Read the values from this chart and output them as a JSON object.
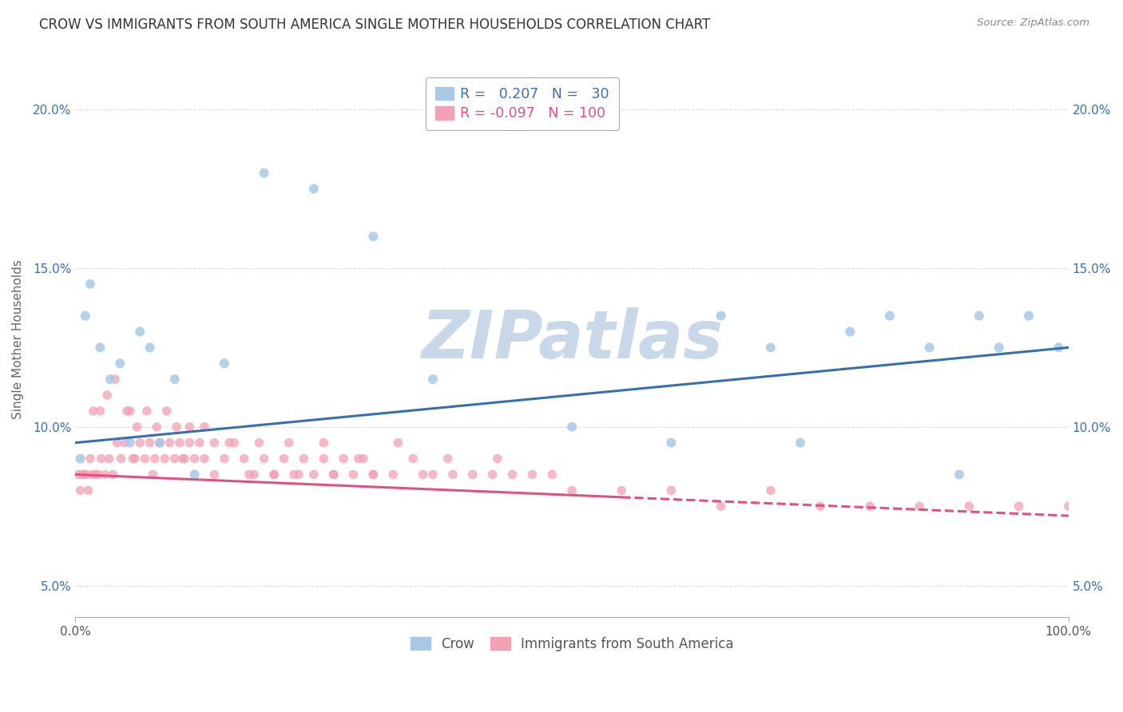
{
  "title": "CROW VS IMMIGRANTS FROM SOUTH AMERICA SINGLE MOTHER HOUSEHOLDS CORRELATION CHART",
  "source": "Source: ZipAtlas.com",
  "ylabel": "Single Mother Households",
  "blue_R": 0.207,
  "blue_N": 30,
  "pink_R": -0.097,
  "pink_N": 100,
  "blue_color": "#a8c8e8",
  "pink_color": "#f4a0b5",
  "blue_line_color": "#3a6faf",
  "pink_line_color": "#e05080",
  "xlim": [
    0,
    100
  ],
  "ylim": [
    4.0,
    21.5
  ],
  "yticks": [
    5,
    10,
    15,
    20
  ],
  "ytick_labels": [
    "5.0%",
    "10.0%",
    "15.0%",
    "20.0%"
  ],
  "watermark": "ZIPatlas",
  "watermark_color": "#c8d8e8",
  "legend_label_blue": "Crow",
  "legend_label_pink": "Immigrants from South America",
  "background_color": "#ffffff",
  "grid_color": "#dddddd",
  "blue_scatter_x": [
    0.5,
    1.0,
    1.5,
    2.5,
    3.5,
    4.5,
    5.5,
    6.5,
    7.5,
    8.5,
    10.0,
    12.0,
    15.0,
    19.0,
    24.0,
    30.0,
    36.0,
    50.0,
    60.0,
    65.0,
    70.0,
    73.0,
    78.0,
    82.0,
    86.0,
    89.0,
    91.0,
    93.0,
    96.0,
    99.0
  ],
  "blue_scatter_y": [
    9.0,
    13.5,
    14.5,
    12.5,
    11.5,
    12.0,
    9.5,
    13.0,
    12.5,
    9.5,
    11.5,
    8.5,
    12.0,
    18.0,
    17.5,
    16.0,
    11.5,
    10.0,
    9.5,
    13.5,
    12.5,
    9.5,
    13.0,
    13.5,
    12.5,
    8.5,
    13.5,
    12.5,
    13.5,
    12.5
  ],
  "pink_solid_end": 55,
  "pink_scatter_x": [
    0.3,
    0.5,
    0.7,
    0.9,
    1.1,
    1.3,
    1.5,
    1.7,
    2.0,
    2.3,
    2.6,
    3.0,
    3.4,
    3.8,
    4.2,
    4.6,
    5.0,
    5.5,
    6.0,
    6.5,
    7.0,
    7.5,
    8.0,
    8.5,
    9.0,
    9.5,
    10.0,
    10.5,
    11.0,
    11.5,
    12.0,
    12.5,
    13.0,
    14.0,
    15.0,
    16.0,
    17.0,
    18.0,
    19.0,
    20.0,
    21.0,
    22.0,
    23.0,
    24.0,
    25.0,
    26.0,
    27.0,
    28.0,
    29.0,
    30.0,
    32.0,
    34.0,
    36.0,
    38.0,
    40.0,
    42.0,
    44.0,
    46.0,
    48.0,
    50.0,
    55.0,
    60.0,
    65.0,
    70.0,
    75.0,
    80.0,
    85.0,
    90.0,
    95.0,
    100.0,
    1.8,
    2.5,
    3.2,
    4.0,
    5.2,
    6.2,
    7.2,
    8.2,
    9.2,
    10.2,
    11.5,
    13.0,
    15.5,
    18.5,
    21.5,
    25.0,
    28.5,
    32.5,
    37.5,
    42.5,
    5.8,
    7.8,
    10.8,
    14.0,
    17.5,
    20.0,
    22.5,
    26.0,
    30.0,
    35.0
  ],
  "pink_scatter_y": [
    8.5,
    8.0,
    8.5,
    8.5,
    8.5,
    8.0,
    9.0,
    8.5,
    8.5,
    8.5,
    9.0,
    8.5,
    9.0,
    8.5,
    9.5,
    9.0,
    9.5,
    10.5,
    9.0,
    9.5,
    9.0,
    9.5,
    9.0,
    9.5,
    9.0,
    9.5,
    9.0,
    9.5,
    9.0,
    9.5,
    9.0,
    9.5,
    9.0,
    9.5,
    9.0,
    9.5,
    9.0,
    8.5,
    9.0,
    8.5,
    9.0,
    8.5,
    9.0,
    8.5,
    9.0,
    8.5,
    9.0,
    8.5,
    9.0,
    8.5,
    8.5,
    9.0,
    8.5,
    8.5,
    8.5,
    8.5,
    8.5,
    8.5,
    8.5,
    8.0,
    8.0,
    8.0,
    7.5,
    8.0,
    7.5,
    7.5,
    7.5,
    7.5,
    7.5,
    7.5,
    10.5,
    10.5,
    11.0,
    11.5,
    10.5,
    10.0,
    10.5,
    10.0,
    10.5,
    10.0,
    10.0,
    10.0,
    9.5,
    9.5,
    9.5,
    9.5,
    9.0,
    9.5,
    9.0,
    9.0,
    9.0,
    8.5,
    9.0,
    8.5,
    8.5,
    8.5,
    8.5,
    8.5,
    8.5,
    8.5
  ]
}
